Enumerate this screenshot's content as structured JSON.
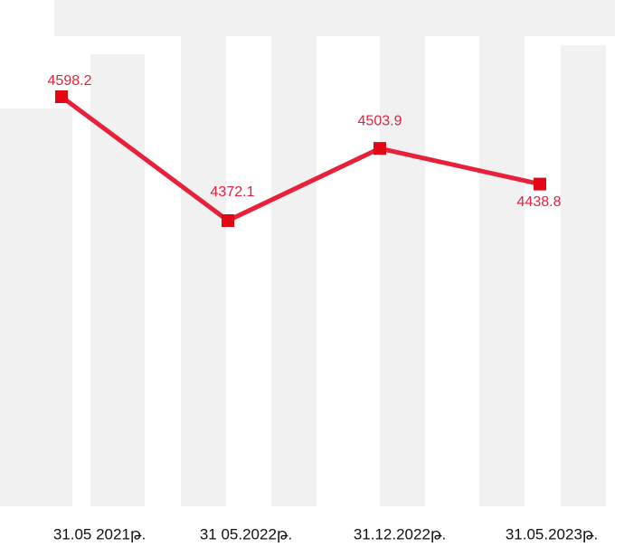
{
  "chart_data": {
    "type": "line",
    "categories": [
      "31.05 2021թ.",
      "31 05.2022թ.",
      "31.12.2022թ.",
      "31.05.2023թ."
    ],
    "values": [
      4598.2,
      4372.1,
      4503.9,
      4438.8
    ],
    "color": "#e8203a",
    "marker_color": "#e30613"
  }
}
